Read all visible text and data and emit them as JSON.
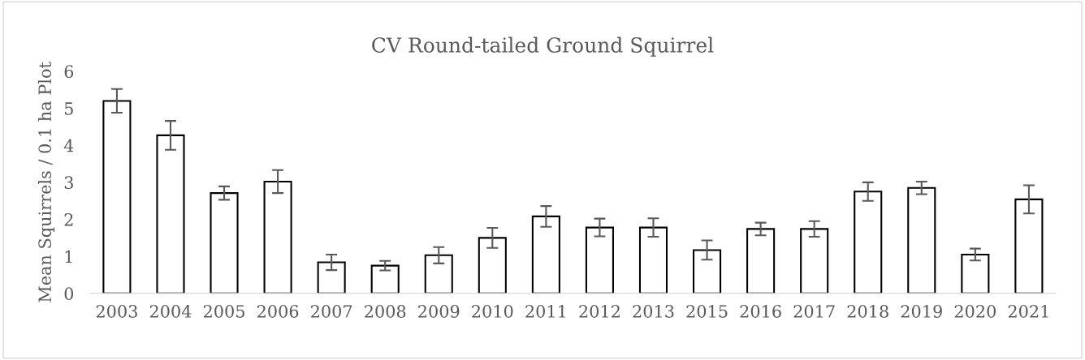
{
  "chart_data": {
    "type": "bar",
    "title": "CV Round-tailed Ground Squirrel",
    "ylabel": "Mean Squirrels / 0.1 ha Plot",
    "categories": [
      "2003",
      "2004",
      "2005",
      "2006",
      "2007",
      "2008",
      "2009",
      "2010",
      "2011",
      "2012",
      "2013",
      "2015",
      "2016",
      "2017",
      "2018",
      "2019",
      "2020",
      "2021"
    ],
    "values": [
      5.2,
      4.27,
      2.71,
      3.02,
      0.84,
      0.75,
      1.03,
      1.5,
      2.08,
      1.78,
      1.78,
      1.17,
      1.74,
      1.74,
      2.75,
      2.85,
      1.05,
      2.54
    ],
    "errors": [
      0.32,
      0.39,
      0.18,
      0.31,
      0.21,
      0.13,
      0.22,
      0.27,
      0.28,
      0.24,
      0.25,
      0.26,
      0.17,
      0.21,
      0.25,
      0.17,
      0.16,
      0.38
    ],
    "color": "#ffffff",
    "ylim": [
      0,
      6
    ],
    "yticks": [
      0,
      1,
      2,
      3,
      4,
      5,
      6
    ],
    "grid": false,
    "legend": false
  }
}
